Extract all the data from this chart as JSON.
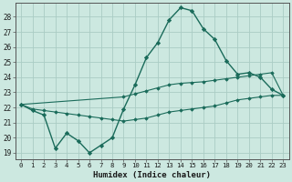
{
  "xlabel": "Humidex (Indice chaleur)",
  "bg_color": "#cce8e0",
  "grid_color": "#aaccc4",
  "line_color": "#1a6b5a",
  "xlim": [
    -0.5,
    23.5
  ],
  "ylim": [
    18.6,
    28.9
  ],
  "xtick_labels": [
    "0",
    "1",
    "2",
    "3",
    "4",
    "5",
    "6",
    "7",
    "8",
    "9",
    "10",
    "11",
    "12",
    "13",
    "14",
    "15",
    "16",
    "17",
    "18",
    "19",
    "20",
    "21",
    "22",
    "23"
  ],
  "ytick_values": [
    19,
    20,
    21,
    22,
    23,
    24,
    25,
    26,
    27,
    28
  ],
  "main_line_x": [
    0,
    1,
    2,
    3,
    4,
    5,
    6,
    7,
    8,
    9,
    10,
    11,
    12,
    13,
    14,
    15,
    16,
    17,
    18,
    19,
    20,
    21,
    22,
    23
  ],
  "main_line_y": [
    22.2,
    21.8,
    21.5,
    19.3,
    20.3,
    19.8,
    19.0,
    19.5,
    20.0,
    21.9,
    23.5,
    25.3,
    26.3,
    27.8,
    28.6,
    28.4,
    27.2,
    26.5,
    25.1,
    24.2,
    24.3,
    24.0,
    23.2,
    22.8
  ],
  "upper_line_x": [
    0,
    9,
    10,
    11,
    12,
    13,
    14,
    15,
    16,
    17,
    18,
    19,
    20,
    21,
    22,
    23
  ],
  "upper_line_y": [
    22.2,
    22.7,
    22.9,
    23.1,
    23.3,
    23.5,
    23.6,
    23.65,
    23.7,
    23.8,
    23.9,
    24.0,
    24.1,
    24.2,
    24.3,
    22.8
  ],
  "lower_line_x": [
    0,
    1,
    2,
    3,
    4,
    5,
    6,
    7,
    8,
    9,
    10,
    11,
    12,
    13,
    14,
    15,
    16,
    17,
    18,
    19,
    20,
    21,
    22,
    23
  ],
  "lower_line_y": [
    22.2,
    21.9,
    21.8,
    21.7,
    21.6,
    21.5,
    21.4,
    21.3,
    21.2,
    21.1,
    21.2,
    21.3,
    21.5,
    21.7,
    21.8,
    21.9,
    22.0,
    22.1,
    22.3,
    22.5,
    22.6,
    22.7,
    22.8,
    22.8
  ]
}
